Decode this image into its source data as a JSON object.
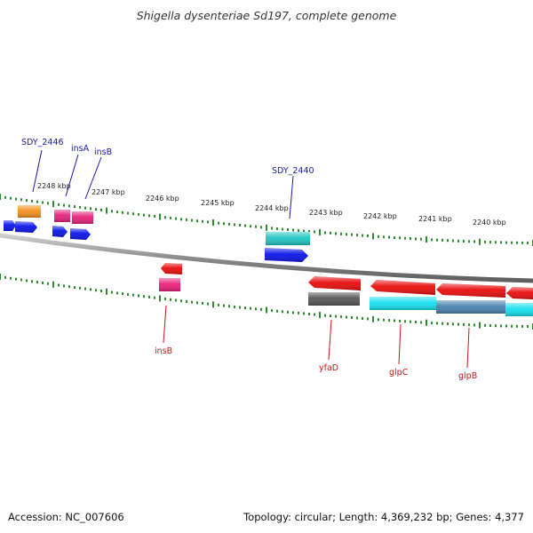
{
  "title": "Shigella dysenteriae Sd197, complete genome",
  "footer": {
    "accession": "Accession: NC_007606",
    "summary": "Topology: circular; Length: 4,369,232 bp; Genes: 4,377"
  },
  "colors": {
    "backbone": "#8c8c8c",
    "tick": "#2e8b2e",
    "label_top": "#1a1aa6",
    "label_bottom": "#c41a1a",
    "blue": "#0a14e6",
    "orange": "#f5901e",
    "magenta": "#e8207a",
    "teal": "#22c4c4",
    "red": "#e80c0c",
    "gray": "#555555",
    "cyan": "#16e0ee",
    "steel": "#4a82b0"
  },
  "kbp_labels": [
    "2248 kbp",
    "2247 kbp",
    "2246 kbp",
    "2245 kbp",
    "2244 kbp",
    "2243 kbp",
    "2242 kbp",
    "2241 kbp",
    "2240 kbp"
  ],
  "top_gene_labels": [
    "SDY_2446",
    "insA",
    "insB",
    "SDY_2440"
  ],
  "bottom_gene_labels": [
    "insB",
    "yfaD",
    "glpC",
    "glpB"
  ]
}
